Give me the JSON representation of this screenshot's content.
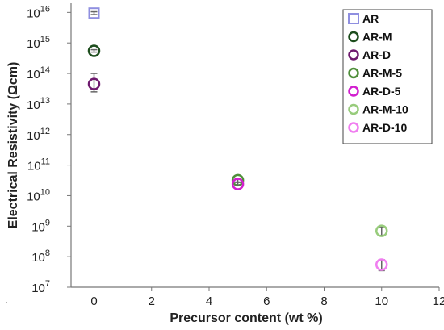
{
  "chart_data": {
    "type": "scatter",
    "title": "",
    "xlabel": "Precursor content (wt %)",
    "ylabel": "Electrical Resistivity (Ωcm)",
    "xlim": [
      -0.8,
      12
    ],
    "ylim_exponent": [
      7,
      16.3
    ],
    "y_scale": "log",
    "x_ticks": [
      "0",
      "2",
      "4",
      "6",
      "8",
      "10",
      "12"
    ],
    "y_ticks": [
      {
        "base": "10",
        "exp": "16"
      },
      {
        "base": "10",
        "exp": "15"
      },
      {
        "base": "10",
        "exp": "14"
      },
      {
        "base": "10",
        "exp": "13"
      },
      {
        "base": "10",
        "exp": "12"
      },
      {
        "base": "10",
        "exp": "11"
      },
      {
        "base": "10",
        "exp": "10"
      },
      {
        "base": "10",
        "exp": "9"
      },
      {
        "base": "10",
        "exp": "8"
      },
      {
        "base": "10",
        "exp": "7"
      }
    ],
    "grid": false,
    "legend_position": "top-right",
    "corner_mark": "·",
    "series": [
      {
        "name": "AR",
        "marker": "square",
        "color": "#8f8fe0",
        "points": [
          {
            "x": 0,
            "y": 9500000000000000.0,
            "err_low": 8500000000000000.0,
            "err_high": 1.05e+16
          }
        ]
      },
      {
        "name": "AR-M",
        "marker": "circle",
        "color": "#1d4d1d",
        "points": [
          {
            "x": 0,
            "y": 550000000000000.0,
            "err_low": 500000000000000.0,
            "err_high": 600000000000000.0
          }
        ]
      },
      {
        "name": "AR-D",
        "marker": "circle",
        "color": "#6e1a6e",
        "points": [
          {
            "x": 0,
            "y": 45000000000000.0,
            "err_low": 25000000000000.0,
            "err_high": 100000000000000.0
          }
        ]
      },
      {
        "name": "AR-M-5",
        "marker": "circle",
        "color": "#4f8f3a",
        "points": [
          {
            "x": 5,
            "y": 32000000000.0,
            "err_low": 28000000000.0,
            "err_high": 36000000000.0
          }
        ]
      },
      {
        "name": "AR-D-5",
        "marker": "circle",
        "color": "#d21fcf",
        "points": [
          {
            "x": 5,
            "y": 24000000000.0,
            "err_low": 21000000000.0,
            "err_high": 27000000000.0
          }
        ]
      },
      {
        "name": "AR-M-10",
        "marker": "circle",
        "color": "#98cc7c",
        "points": [
          {
            "x": 10,
            "y": 700000000.0,
            "err_low": 500000000.0,
            "err_high": 950000000.0
          }
        ]
      },
      {
        "name": "AR-D-10",
        "marker": "circle",
        "color": "#f07ef0",
        "points": [
          {
            "x": 10,
            "y": 55000000.0,
            "err_low": 35000000.0,
            "err_high": 80000000.0
          }
        ]
      }
    ]
  }
}
